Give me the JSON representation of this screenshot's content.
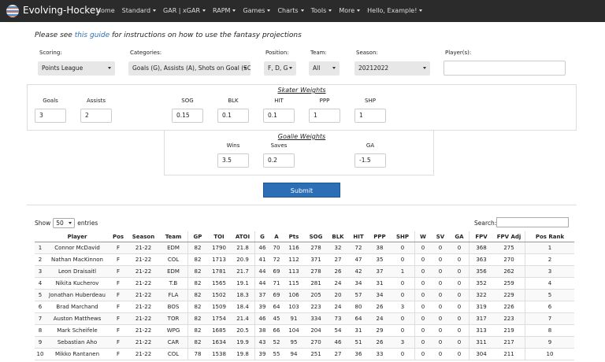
{
  "nav": {
    "brand": "Evolving-Hockey",
    "items": [
      "Home",
      "Standard",
      "GAR | xGAR",
      "RAPM",
      "Games",
      "Charts",
      "Tools",
      "More",
      "Hello, Example!"
    ]
  },
  "intro": {
    "prefix": "Please see ",
    "link": "this guide",
    "suffix": " for instructions on how to use the fantasy projections"
  },
  "filters": [
    {
      "label": "Scoring:",
      "value": "Points League"
    },
    {
      "label": "Categories:",
      "value": "Goals (G), Assists (A), Shots on Goal (SO"
    },
    {
      "label": "Position:",
      "value": "F, D, G"
    },
    {
      "label": "Team:",
      "value": "All"
    },
    {
      "label": "Season:",
      "value": "20212022"
    },
    {
      "label": "Player(s):"
    }
  ],
  "skater_weights": {
    "title": "Skater Weights",
    "fields": [
      {
        "label": "Goals",
        "value": 3
      },
      {
        "label": "Assists",
        "value": 2
      },
      {
        "label": "SOG",
        "value": 0.15
      },
      {
        "label": "BLK",
        "value": 0.1
      },
      {
        "label": "HIT",
        "value": 0.1
      },
      {
        "label": "PPP",
        "value": 1
      },
      {
        "label": "SHP",
        "value": 1
      }
    ]
  },
  "goalie_weights": {
    "title": "Goalie Weights",
    "fields": [
      {
        "label": "Wins",
        "value": 3.5
      },
      {
        "label": "Saves",
        "value": 0.2
      },
      {
        "label": "GA",
        "value": -1.5
      }
    ]
  },
  "submit": "Submit",
  "table_controls": {
    "show": "Show",
    "length": 50,
    "entries": "entries",
    "search": "Search:"
  },
  "table": {
    "columns": [
      null,
      "Player",
      "Pos",
      "Season",
      "Team",
      "GP",
      "TOI",
      "ATOI",
      "G",
      "A",
      "Pts",
      "SOG",
      "BLK",
      "HIT",
      "PPP",
      "SHP",
      "W",
      "SV",
      "GA",
      "FPV",
      "FPV Adj",
      "Pos Rank"
    ],
    "rows": [
      [
        1,
        "Connor McDavid",
        "F",
        "21-22",
        "EDM",
        82,
        1790,
        21.8,
        46,
        70,
        116,
        278,
        32,
        72,
        38,
        0,
        0,
        0,
        0,
        368,
        275,
        1
      ],
      [
        2,
        "Nathan MacKinnon",
        "F",
        "21-22",
        "COL",
        82,
        1713,
        20.9,
        41,
        72,
        112,
        371,
        27,
        47,
        35,
        0,
        0,
        0,
        0,
        363,
        270,
        2
      ],
      [
        3,
        "Leon Draisaitl",
        "F",
        "21-22",
        "EDM",
        82,
        1781,
        21.7,
        44,
        69,
        113,
        278,
        26,
        42,
        37,
        1,
        0,
        0,
        0,
        356,
        262,
        3
      ],
      [
        4,
        "Nikita Kucherov",
        "F",
        "21-22",
        "T.B",
        82,
        1565,
        19.1,
        44,
        71,
        115,
        281,
        24,
        34,
        31,
        0,
        0,
        0,
        0,
        352,
        259,
        4
      ],
      [
        5,
        "Jonathan Huberdeau",
        "F",
        "21-22",
        "FLA",
        82,
        1502,
        18.3,
        37,
        69,
        106,
        205,
        20,
        57,
        34,
        0,
        0,
        0,
        0,
        322,
        229,
        5
      ],
      [
        6,
        "Brad Marchand",
        "F",
        "21-22",
        "BOS",
        82,
        1509,
        18.4,
        39,
        64,
        103,
        223,
        24,
        80,
        26,
        3,
        0,
        0,
        0,
        319,
        226,
        6
      ],
      [
        7,
        "Auston Matthews",
        "F",
        "21-22",
        "TOR",
        82,
        1754,
        21.4,
        46,
        45,
        91,
        334,
        73,
        64,
        24,
        0,
        0,
        0,
        0,
        317,
        223,
        7
      ],
      [
        8,
        "Mark Scheifele",
        "F",
        "21-22",
        "WPG",
        82,
        1685,
        20.5,
        38,
        66,
        104,
        204,
        54,
        31,
        29,
        0,
        0,
        0,
        0,
        313,
        219,
        8
      ],
      [
        9,
        "Sebastian Aho",
        "F",
        "21-22",
        "CAR",
        82,
        1634,
        19.9,
        43,
        52,
        95,
        270,
        46,
        51,
        26,
        3,
        0,
        0,
        0,
        311,
        217,
        9
      ],
      [
        10,
        "Mikko Rantanen",
        "F",
        "21-22",
        "COL",
        78,
        1538,
        19.8,
        39,
        55,
        94,
        251,
        27,
        36,
        33,
        0,
        0,
        0,
        0,
        304,
        211,
        10
      ]
    ]
  }
}
